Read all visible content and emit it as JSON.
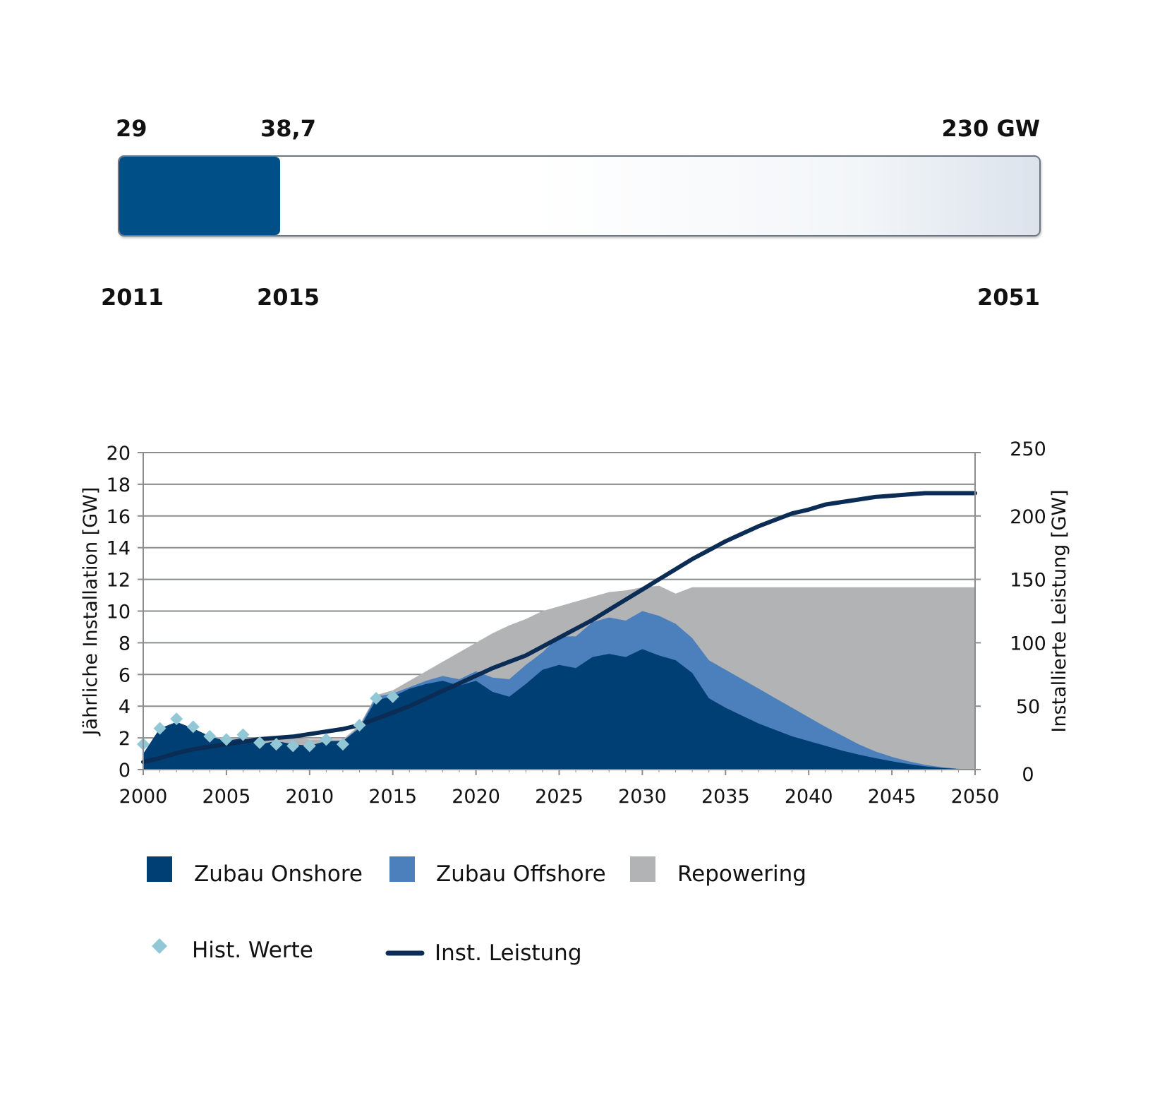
{
  "progress": {
    "start_value_label": "29",
    "current_value_label": "38,7",
    "target_value_label": "230 GW",
    "start_year": "2011",
    "current_year": "2015",
    "target_year": "2051",
    "start_value": 29,
    "current_value": 38.7,
    "target_value": 230,
    "fill_color": "#004f87"
  },
  "chart_data": {
    "type": "area",
    "x": [
      2000,
      2001,
      2002,
      2003,
      2004,
      2005,
      2006,
      2007,
      2008,
      2009,
      2010,
      2011,
      2012,
      2013,
      2014,
      2015,
      2016,
      2017,
      2018,
      2019,
      2020,
      2021,
      2022,
      2023,
      2024,
      2025,
      2026,
      2027,
      2028,
      2029,
      2030,
      2031,
      2032,
      2033,
      2034,
      2035,
      2036,
      2037,
      2038,
      2039,
      2040,
      2041,
      2042,
      2043,
      2044,
      2045,
      2046,
      2047,
      2048,
      2049,
      2050
    ],
    "xticks": [
      "2000",
      "2005",
      "2010",
      "2015",
      "2020",
      "2025",
      "2030",
      "2035",
      "2040",
      "2045",
      "2050"
    ],
    "xlim": [
      2000,
      2050
    ],
    "y_left": {
      "label": "Jährliche Installation [GW]",
      "lim": [
        0,
        20
      ],
      "ticks": [
        "0",
        "2",
        "4",
        "6",
        "8",
        "10",
        "12",
        "14",
        "16",
        "18",
        "20"
      ]
    },
    "y_right": {
      "label": "Installierte Leistung [GW]",
      "lim": [
        0,
        250
      ],
      "ticks": [
        "0",
        "50",
        "100",
        "150",
        "200",
        "250"
      ]
    },
    "grid": true,
    "legend_position": "bottom",
    "series": [
      {
        "name": "Zubau Onshore",
        "type": "area",
        "axis": "left",
        "color": "#003f73",
        "values": [
          1.0,
          2.6,
          3.0,
          2.6,
          2.1,
          1.8,
          2.0,
          1.6,
          1.8,
          1.6,
          1.5,
          1.8,
          1.8,
          2.6,
          4.4,
          4.6,
          5.1,
          5.4,
          5.6,
          5.3,
          5.6,
          4.9,
          4.6,
          5.4,
          6.3,
          6.6,
          6.4,
          7.1,
          7.3,
          7.1,
          7.6,
          7.2,
          6.9,
          6.1,
          4.5,
          3.9,
          3.4,
          2.9,
          2.5,
          2.1,
          1.8,
          1.5,
          1.2,
          0.95,
          0.72,
          0.52,
          0.35,
          0.2,
          0.1,
          0.04,
          0.0
        ]
      },
      {
        "name": "Zubau Offshore",
        "type": "area",
        "axis": "left",
        "stacked_total": true,
        "color": "#4b80bd",
        "values": [
          1.0,
          2.6,
          3.0,
          2.6,
          2.1,
          1.8,
          2.0,
          1.6,
          1.8,
          1.6,
          1.5,
          1.8,
          1.8,
          2.7,
          4.6,
          4.8,
          5.2,
          5.6,
          5.9,
          5.7,
          6.2,
          5.8,
          5.7,
          6.6,
          7.4,
          8.4,
          8.4,
          9.3,
          9.6,
          9.4,
          10.0,
          9.7,
          9.2,
          8.3,
          6.9,
          6.3,
          5.7,
          5.1,
          4.5,
          3.9,
          3.3,
          2.7,
          2.15,
          1.6,
          1.15,
          0.8,
          0.52,
          0.3,
          0.15,
          0.05,
          0.0
        ]
      },
      {
        "name": "Repowering",
        "type": "area",
        "axis": "left",
        "stacked_total": true,
        "color": "#b2b3b5",
        "values": [
          1.0,
          2.6,
          3.0,
          2.6,
          2.1,
          2.0,
          2.0,
          2.0,
          2.0,
          2.0,
          1.9,
          1.9,
          1.9,
          2.8,
          4.7,
          5.0,
          5.6,
          6.2,
          6.8,
          7.4,
          8.0,
          8.6,
          9.1,
          9.5,
          10.0,
          10.3,
          10.6,
          10.9,
          11.2,
          11.3,
          11.5,
          11.6,
          11.1,
          11.5,
          11.5,
          11.5,
          11.5,
          11.5,
          11.5,
          11.5,
          11.5,
          11.5,
          11.5,
          11.5,
          11.5,
          11.5,
          11.5,
          11.5,
          11.5,
          11.5,
          11.5
        ]
      },
      {
        "name": "Hist. Werte",
        "type": "scatter",
        "axis": "left",
        "color": "#92c8d6",
        "x": [
          2000,
          2001,
          2002,
          2003,
          2004,
          2005,
          2006,
          2007,
          2008,
          2009,
          2010,
          2011,
          2012,
          2013,
          2014,
          2015
        ],
        "values": [
          1.6,
          2.6,
          3.2,
          2.7,
          2.1,
          1.9,
          2.2,
          1.7,
          1.6,
          1.5,
          1.5,
          1.9,
          1.6,
          2.8,
          4.5,
          4.6
        ]
      },
      {
        "name": "Inst. Leistung",
        "type": "line",
        "axis": "right",
        "color": "#0b2d55",
        "values": [
          6,
          9,
          13,
          16,
          18,
          20,
          22,
          24,
          25,
          26,
          28,
          30,
          32,
          35,
          40,
          45,
          50,
          56,
          62,
          68,
          74,
          80,
          85,
          90,
          97,
          104,
          111,
          118,
          126,
          134,
          142,
          150,
          158,
          166,
          173,
          180,
          186,
          192,
          197,
          202,
          205,
          209,
          211,
          213,
          215,
          216,
          217,
          218,
          218,
          218,
          218
        ]
      }
    ]
  }
}
